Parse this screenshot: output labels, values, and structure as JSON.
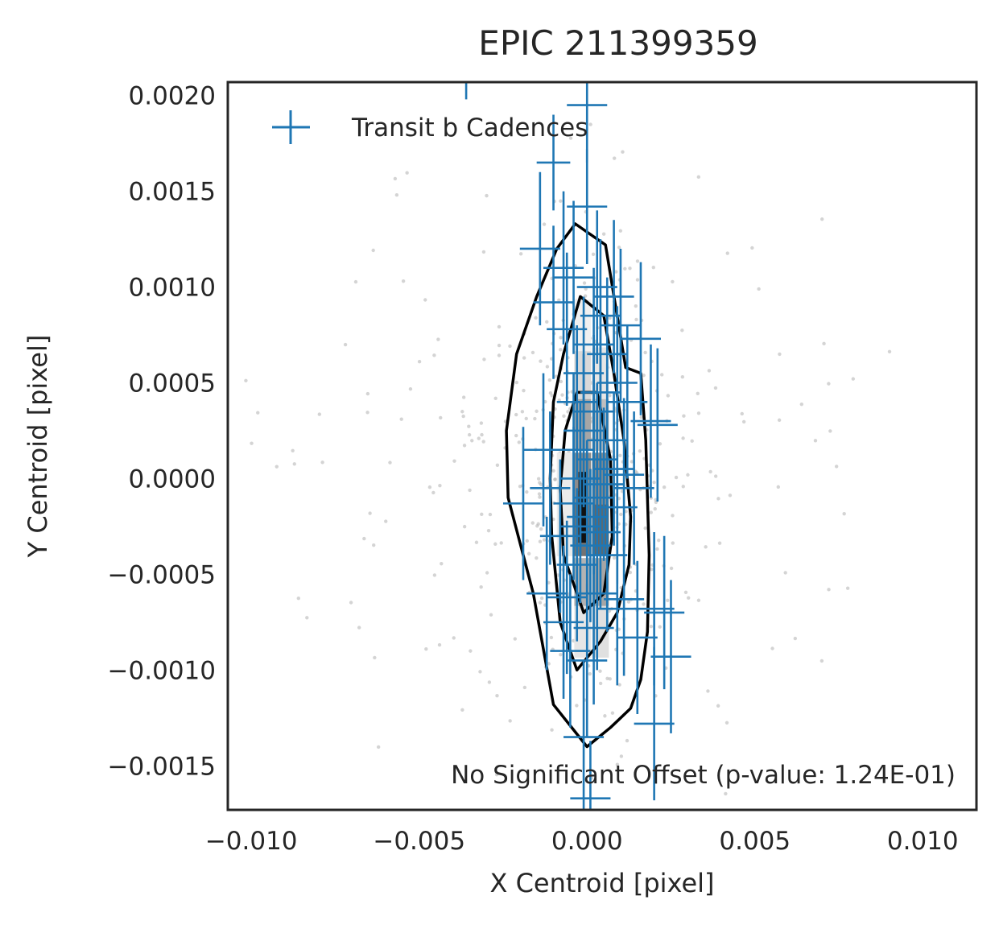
{
  "chart_data": {
    "type": "scatter",
    "title": "EPIC 211399359",
    "xlabel": "X Centroid [pixel]",
    "ylabel": "Y Centroid [pixel]",
    "xlim": [
      -0.0107,
      0.0116
    ],
    "ylim": [
      -0.00173,
      0.00207
    ],
    "xticks": [
      {
        "value": -0.01,
        "label": "−0.010"
      },
      {
        "value": -0.005,
        "label": "−0.005"
      },
      {
        "value": 0.0,
        "label": "0.000"
      },
      {
        "value": 0.005,
        "label": "0.005"
      },
      {
        "value": 0.01,
        "label": "0.010"
      }
    ],
    "yticks": [
      {
        "value": -0.0015,
        "label": "−0.0015"
      },
      {
        "value": -0.001,
        "label": "−0.0010"
      },
      {
        "value": -0.0005,
        "label": "−0.0005"
      },
      {
        "value": 0.0,
        "label": "0.0000"
      },
      {
        "value": 0.0005,
        "label": "0.0005"
      },
      {
        "value": 0.001,
        "label": "0.0010"
      },
      {
        "value": 0.0015,
        "label": "0.0015"
      },
      {
        "value": 0.002,
        "label": "0.0020"
      }
    ],
    "grid": false,
    "legend": {
      "placement": "top-left",
      "entries": [
        "Transit b Cadences"
      ]
    },
    "annotation": "No Significant Offset (p-value: 1.24E-01)",
    "colors": {
      "transit": "#1f77b4",
      "contour": "#000000",
      "background_points": "#b0b0b0",
      "frame": "#262626"
    },
    "density_cells": [
      {
        "x": -0.00013,
        "y": 0.00055,
        "shade": 0.15
      },
      {
        "x": -0.00013,
        "y": 0.00028,
        "shade": 0.35
      },
      {
        "x": -0.00013,
        "y": 0.0,
        "shade": 0.45
      },
      {
        "x": -0.00013,
        "y": -0.00027,
        "shade": 0.55
      },
      {
        "x": -0.00013,
        "y": -0.00055,
        "shade": 0.3
      },
      {
        "x": 0.0004,
        "y": 0.00055,
        "shade": 0.1
      },
      {
        "x": 0.0004,
        "y": 0.00028,
        "shade": 0.25
      },
      {
        "x": 0.0004,
        "y": 0.0,
        "shade": 0.45
      },
      {
        "x": 0.0004,
        "y": -0.00027,
        "shade": 0.6
      },
      {
        "x": 0.0004,
        "y": -0.00055,
        "shade": 0.35
      },
      {
        "x": 0.0004,
        "y": -0.0008,
        "shade": 0.12
      },
      {
        "x": -0.00065,
        "y": -0.00027,
        "shade": 0.08
      },
      {
        "x": -0.00065,
        "y": 0.0,
        "shade": 0.08
      },
      {
        "x": -0.00013,
        "y": -0.0008,
        "shade": 0.1
      },
      {
        "x": -0.00013,
        "y": 0.0008,
        "shade": 0.06
      }
    ],
    "dense_core": [
      {
        "x": -0.00013,
        "y": -0.0001
      },
      {
        "x": -0.00013,
        "y": -0.0002
      }
    ],
    "contours": [
      {
        "name": "outer",
        "points": [
          [
            -0.00035,
            0.00133
          ],
          [
            0.00055,
            0.00122
          ],
          [
            0.00085,
            0.0009
          ],
          [
            0.00115,
            0.00058
          ],
          [
            0.0016,
            0.00055
          ],
          [
            0.00175,
            0.0002
          ],
          [
            0.00185,
            -0.0004
          ],
          [
            0.0018,
            -0.0008
          ],
          [
            0.0016,
            -0.00105
          ],
          [
            0.0013,
            -0.0012
          ],
          [
            0.0007,
            -0.0013
          ],
          [
            0.0,
            -0.0014
          ],
          [
            -0.001,
            -0.00118
          ],
          [
            -0.0016,
            -0.0006
          ],
          [
            -0.00235,
            -0.0001
          ],
          [
            -0.0024,
            0.00025
          ],
          [
            -0.0021,
            0.00065
          ],
          [
            -0.0015,
            0.00095
          ],
          [
            -0.0009,
            0.0012
          ]
        ]
      },
      {
        "name": "inner",
        "points": [
          [
            -0.0002,
            0.00095
          ],
          [
            0.0005,
            0.00085
          ],
          [
            0.0008,
            0.00055
          ],
          [
            0.0011,
            0.0002
          ],
          [
            0.0013,
            -0.0002
          ],
          [
            0.00125,
            -0.00045
          ],
          [
            0.0009,
            -0.0007
          ],
          [
            0.0004,
            -0.00085
          ],
          [
            -0.0003,
            -0.001
          ],
          [
            -0.0008,
            -0.00075
          ],
          [
            -0.00105,
            -0.0003
          ],
          [
            -0.0011,
            0.0
          ],
          [
            -0.001,
            0.0004
          ],
          [
            -0.0007,
            0.00065
          ]
        ]
      },
      {
        "name": "innermost",
        "points": [
          [
            -0.0003,
            0.00045
          ],
          [
            0.0003,
            0.00045
          ],
          [
            0.0007,
            0.0001
          ],
          [
            0.00075,
            -0.0003
          ],
          [
            0.0005,
            -0.0006
          ],
          [
            -0.0001,
            -0.0007
          ],
          [
            -0.0007,
            -0.0004
          ],
          [
            -0.0008,
            -5e-05
          ],
          [
            -0.00065,
            0.00025
          ]
        ]
      }
    ],
    "transit_points": [
      {
        "x": -0.0036,
        "y": 0.0021,
        "xerr": 0.0003,
        "yerr": 0.00012
      },
      {
        "x": -0.0,
        "y": 0.00195,
        "xerr": 0.0006,
        "yerr": 0.0003
      },
      {
        "x": -0.001,
        "y": 0.00165,
        "xerr": 0.0005,
        "yerr": 0.00025
      },
      {
        "x": 0.0,
        "y": 0.00142,
        "xerr": 0.0006,
        "yerr": 0.0003
      },
      {
        "x": -0.0014,
        "y": 0.0012,
        "xerr": 0.0006,
        "yerr": 0.0004
      },
      {
        "x": -0.0007,
        "y": 0.0011,
        "xerr": 0.0006,
        "yerr": 0.0004
      },
      {
        "x": -0.0004,
        "y": 0.00105,
        "xerr": 0.0006,
        "yerr": 0.0004
      },
      {
        "x": 0.0003,
        "y": 0.001,
        "xerr": 0.0006,
        "yerr": 0.0004
      },
      {
        "x": -0.001,
        "y": 0.00092,
        "xerr": 0.0006,
        "yerr": 0.0004
      },
      {
        "x": 0.0008,
        "y": 0.00095,
        "xerr": 0.0006,
        "yerr": 0.0004
      },
      {
        "x": 0.0004,
        "y": 0.00085,
        "xerr": 0.0006,
        "yerr": 0.0004
      },
      {
        "x": -0.0006,
        "y": 0.00078,
        "xerr": 0.0006,
        "yerr": 0.0004
      },
      {
        "x": 0.001,
        "y": 0.0008,
        "xerr": 0.0006,
        "yerr": 0.0004
      },
      {
        "x": 0.0016,
        "y": 0.00073,
        "xerr": 0.0006,
        "yerr": 0.0004
      },
      {
        "x": 0.0002,
        "y": 0.0007,
        "xerr": 0.0006,
        "yerr": 0.0004
      },
      {
        "x": 0.0006,
        "y": 0.00065,
        "xerr": 0.0006,
        "yerr": 0.0004
      },
      {
        "x": -0.0001,
        "y": 0.00055,
        "xerr": 0.0006,
        "yerr": 0.0004
      },
      {
        "x": 0.0009,
        "y": 0.0005,
        "xerr": 0.0006,
        "yerr": 0.0004
      },
      {
        "x": 0.0004,
        "y": 0.00045,
        "xerr": 0.0006,
        "yerr": 0.0004
      },
      {
        "x": -0.0003,
        "y": 0.0004,
        "xerr": 0.0006,
        "yerr": 0.0004
      },
      {
        "x": 0.0012,
        "y": 0.0004,
        "xerr": 0.0006,
        "yerr": 0.0004
      },
      {
        "x": 0.0002,
        "y": 0.00035,
        "xerr": 0.0006,
        "yerr": 0.0004
      },
      {
        "x": 0.0019,
        "y": 0.0003,
        "xerr": 0.0006,
        "yerr": 0.0004
      },
      {
        "x": 0.0021,
        "y": 0.00028,
        "xerr": 0.0006,
        "yerr": 0.0004
      },
      {
        "x": -0.0001,
        "y": 0.00025,
        "xerr": 0.0006,
        "yerr": 0.0004
      },
      {
        "x": 0.0006,
        "y": 0.0002,
        "xerr": 0.0006,
        "yerr": 0.0004
      },
      {
        "x": -0.0004,
        "y": 0.00015,
        "xerr": 0.0006,
        "yerr": 0.0004
      },
      {
        "x": -0.0013,
        "y": 0.00015,
        "xerr": 0.0006,
        "yerr": 0.0004
      },
      {
        "x": 0.0003,
        "y": 0.0001,
        "xerr": 0.0006,
        "yerr": 0.0004
      },
      {
        "x": 0.0008,
        "y": 5e-05,
        "xerr": 0.0006,
        "yerr": 0.0004
      },
      {
        "x": -0.0002,
        "y": 0.0,
        "xerr": 0.0006,
        "yerr": 0.0004
      },
      {
        "x": 0.0011,
        "y": 2e-05,
        "xerr": 0.0006,
        "yerr": 0.0004
      },
      {
        "x": 0.0005,
        "y": -3e-05,
        "xerr": 0.0006,
        "yerr": 0.0004
      },
      {
        "x": -0.0011,
        "y": -5e-05,
        "xerr": 0.0006,
        "yerr": 0.0004
      },
      {
        "x": 0.0014,
        "y": -5e-05,
        "xerr": 0.0006,
        "yerr": 0.0004
      },
      {
        "x": 0.0002,
        "y": -0.0001,
        "xerr": 0.0006,
        "yerr": 0.0004
      },
      {
        "x": -0.0004,
        "y": -0.00013,
        "xerr": 0.0006,
        "yerr": 0.0004
      },
      {
        "x": -0.0019,
        "y": -0.00013,
        "xerr": 0.0006,
        "yerr": 0.0004
      },
      {
        "x": 0.0009,
        "y": -0.00015,
        "xerr": 0.0006,
        "yerr": 0.0004
      },
      {
        "x": 0.0,
        "y": -0.0002,
        "xerr": 0.0006,
        "yerr": 0.0004
      },
      {
        "x": -0.0002,
        "y": -0.00025,
        "xerr": 0.0006,
        "yerr": 0.0004
      },
      {
        "x": 0.0004,
        "y": -0.00028,
        "xerr": 0.0006,
        "yerr": 0.0004
      },
      {
        "x": -0.0008,
        "y": -0.0003,
        "xerr": 0.0006,
        "yerr": 0.0004
      },
      {
        "x": 0.0001,
        "y": -0.00035,
        "xerr": 0.0006,
        "yerr": 0.0004
      },
      {
        "x": 0.0006,
        "y": -0.0004,
        "xerr": 0.0006,
        "yerr": 0.0004
      },
      {
        "x": -0.0003,
        "y": -0.00045,
        "xerr": 0.0006,
        "yerr": 0.0004
      },
      {
        "x": -0.0012,
        "y": -0.0006,
        "xerr": 0.0006,
        "yerr": 0.0004
      },
      {
        "x": -0.0006,
        "y": -0.00062,
        "xerr": 0.0006,
        "yerr": 0.0004
      },
      {
        "x": 0.0003,
        "y": -0.0006,
        "xerr": 0.0006,
        "yerr": 0.0004
      },
      {
        "x": 0.0011,
        "y": -0.00063,
        "xerr": 0.0006,
        "yerr": 0.0004
      },
      {
        "x": 0.0009,
        "y": -0.00068,
        "xerr": 0.0006,
        "yerr": 0.0004
      },
      {
        "x": 0.002,
        "y": -0.00068,
        "xerr": 0.0006,
        "yerr": 0.0004
      },
      {
        "x": 0.0023,
        "y": -0.0007,
        "xerr": 0.0006,
        "yerr": 0.0004
      },
      {
        "x": -0.0007,
        "y": -0.00075,
        "xerr": 0.0006,
        "yerr": 0.0004
      },
      {
        "x": 0.0002,
        "y": -0.00078,
        "xerr": 0.0006,
        "yerr": 0.0004
      },
      {
        "x": 0.0015,
        "y": -0.00083,
        "xerr": 0.0006,
        "yerr": 0.0004
      },
      {
        "x": -0.0005,
        "y": -0.0009,
        "xerr": 0.0006,
        "yerr": 0.0004
      },
      {
        "x": 0.0025,
        "y": -0.00093,
        "xerr": 0.0006,
        "yerr": 0.0004
      },
      {
        "x": 0.0,
        "y": -0.00095,
        "xerr": 0.0006,
        "yerr": 0.0004
      },
      {
        "x": 0.002,
        "y": -0.00128,
        "xerr": 0.0006,
        "yerr": 0.0004
      },
      {
        "x": -0.0001,
        "y": -0.00135,
        "xerr": 0.0006,
        "yerr": 0.0004
      },
      {
        "x": 0.0001,
        "y": -0.00167,
        "xerr": 0.0006,
        "yerr": 0.0003
      }
    ]
  }
}
